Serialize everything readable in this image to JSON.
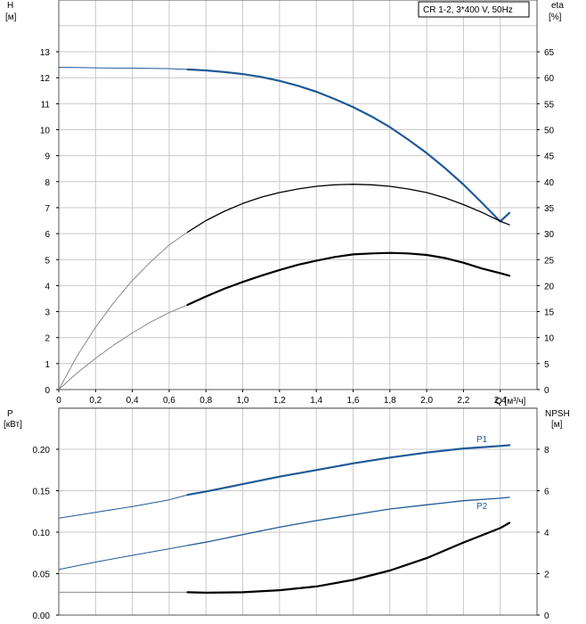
{
  "legend_text": "CR 1-2, 3*400 V, 50Hz",
  "colors": {
    "blue": "#1f5a96",
    "black": "#000000",
    "gray": "#888888",
    "grid": "#c8c8c8"
  },
  "chart_data": [
    {
      "type": "line",
      "name": "upper",
      "xlabel": "Q [м³/ч]",
      "ylabel_left": [
        "H",
        "[м]"
      ],
      "ylabel_right": [
        "eta",
        "[%]"
      ],
      "xlim": [
        0,
        2.6
      ],
      "ylim_left": [
        0,
        14
      ],
      "ylim_right": [
        0,
        70
      ],
      "x_ticks": [
        "0",
        "0,2",
        "0,4",
        "0,6",
        "0,8",
        "1,0",
        "1,2",
        "1,4",
        "1,6",
        "1,8",
        "2,0",
        "2,2",
        "2,4"
      ],
      "y_ticks_left": [
        "0",
        "1",
        "2",
        "3",
        "4",
        "5",
        "6",
        "7",
        "8",
        "9",
        "10",
        "11",
        "12",
        "13"
      ],
      "y_ticks_right": [
        "0",
        "5",
        "10",
        "15",
        "20",
        "25",
        "30",
        "35",
        "40",
        "45",
        "50",
        "55",
        "60",
        "65"
      ],
      "grid": true,
      "series": [
        {
          "id": "H",
          "axis": "left",
          "color": "#1f5a96",
          "x": [
            0,
            0.1,
            0.2,
            0.3,
            0.4,
            0.5,
            0.6,
            0.7,
            0.8,
            0.9,
            1.0,
            1.1,
            1.2,
            1.3,
            1.4,
            1.5,
            1.6,
            1.7,
            1.8,
            1.9,
            2.0,
            2.1,
            2.2,
            2.3,
            2.4,
            2.45
          ],
          "values": [
            12.4,
            12.39,
            12.38,
            12.37,
            12.37,
            12.36,
            12.35,
            12.32,
            12.28,
            12.22,
            12.14,
            12.03,
            11.88,
            11.69,
            11.46,
            11.18,
            10.87,
            10.51,
            10.1,
            9.62,
            9.1,
            8.52,
            7.89,
            7.19,
            6.47,
            6.8
          ],
          "op_start": 0.7
        },
        {
          "id": "eta-thin",
          "axis": "right",
          "color": "#000000",
          "x": [
            0,
            0.1,
            0.2,
            0.3,
            0.4,
            0.5,
            0.6,
            0.7,
            0.8,
            0.9,
            1.0,
            1.1,
            1.2,
            1.3,
            1.4,
            1.5,
            1.6,
            1.7,
            1.8,
            1.9,
            2.0,
            2.1,
            2.2,
            2.3,
            2.4,
            2.45
          ],
          "values": [
            0,
            6.5,
            12.0,
            16.8,
            21.0,
            24.6,
            27.8,
            30.3,
            32.5,
            34.3,
            35.8,
            37.0,
            37.9,
            38.6,
            39.1,
            39.4,
            39.5,
            39.4,
            39.1,
            38.6,
            37.9,
            36.9,
            35.6,
            34.1,
            32.4,
            31.7
          ],
          "op_start": 0.7
        },
        {
          "id": "eta-thick",
          "axis": "right",
          "color": "#000000",
          "x": [
            0,
            0.1,
            0.2,
            0.3,
            0.4,
            0.5,
            0.6,
            0.7,
            0.8,
            0.9,
            1.0,
            1.1,
            1.2,
            1.3,
            1.4,
            1.5,
            1.6,
            1.7,
            1.8,
            1.9,
            2.0,
            2.1,
            2.2,
            2.3,
            2.4,
            2.45
          ],
          "values": [
            0,
            3.2,
            6.0,
            8.6,
            10.9,
            13.0,
            14.8,
            16.3,
            17.9,
            19.4,
            20.7,
            21.9,
            23.0,
            24.0,
            24.8,
            25.5,
            26.0,
            26.2,
            26.3,
            26.2,
            25.9,
            25.3,
            24.4,
            23.3,
            22.4,
            21.9
          ],
          "op_start": 0.7
        }
      ]
    },
    {
      "type": "line",
      "name": "lower",
      "ylabel_left": [
        "P",
        "[кВт]"
      ],
      "ylabel_right": [
        "NPSH",
        "[м]"
      ],
      "xlim": [
        0,
        2.6
      ],
      "ylim_left": [
        0,
        0.25
      ],
      "ylim_right": [
        0,
        10
      ],
      "y_ticks_left": [
        "0.00",
        "0.05",
        "0.10",
        "0.15",
        "0.20"
      ],
      "y_ticks_right": [
        "0",
        "2",
        "4",
        "6",
        "8"
      ],
      "grid": true,
      "series": [
        {
          "id": "P1",
          "label": "P1",
          "axis": "left",
          "color": "#1f5a96",
          "x": [
            0,
            0.2,
            0.4,
            0.6,
            0.7,
            0.8,
            1.0,
            1.2,
            1.4,
            1.6,
            1.8,
            2.0,
            2.2,
            2.4,
            2.45
          ],
          "values": [
            0.117,
            0.124,
            0.131,
            0.139,
            0.145,
            0.149,
            0.158,
            0.167,
            0.175,
            0.183,
            0.19,
            0.196,
            0.201,
            0.204,
            0.205
          ],
          "op_start": 0.7
        },
        {
          "id": "P2",
          "label": "P2",
          "axis": "left",
          "color": "#1f5a96",
          "x": [
            0,
            0.2,
            0.4,
            0.6,
            0.7,
            0.8,
            1.0,
            1.2,
            1.4,
            1.6,
            1.8,
            2.0,
            2.2,
            2.4,
            2.45
          ],
          "values": [
            0.055,
            0.064,
            0.072,
            0.08,
            0.084,
            0.088,
            0.097,
            0.106,
            0.114,
            0.121,
            0.128,
            0.133,
            0.138,
            0.141,
            0.142
          ],
          "op_start": 0.7
        },
        {
          "id": "NPSH",
          "axis": "right",
          "color": "#000000",
          "x": [
            0,
            0.2,
            0.4,
            0.6,
            0.7,
            0.8,
            1.0,
            1.2,
            1.4,
            1.6,
            1.8,
            2.0,
            2.2,
            2.4,
            2.45
          ],
          "values": [
            1.1,
            1.1,
            1.1,
            1.1,
            1.1,
            1.08,
            1.1,
            1.2,
            1.38,
            1.7,
            2.15,
            2.75,
            3.5,
            4.2,
            4.45
          ],
          "op_start": 0.7
        }
      ]
    }
  ]
}
